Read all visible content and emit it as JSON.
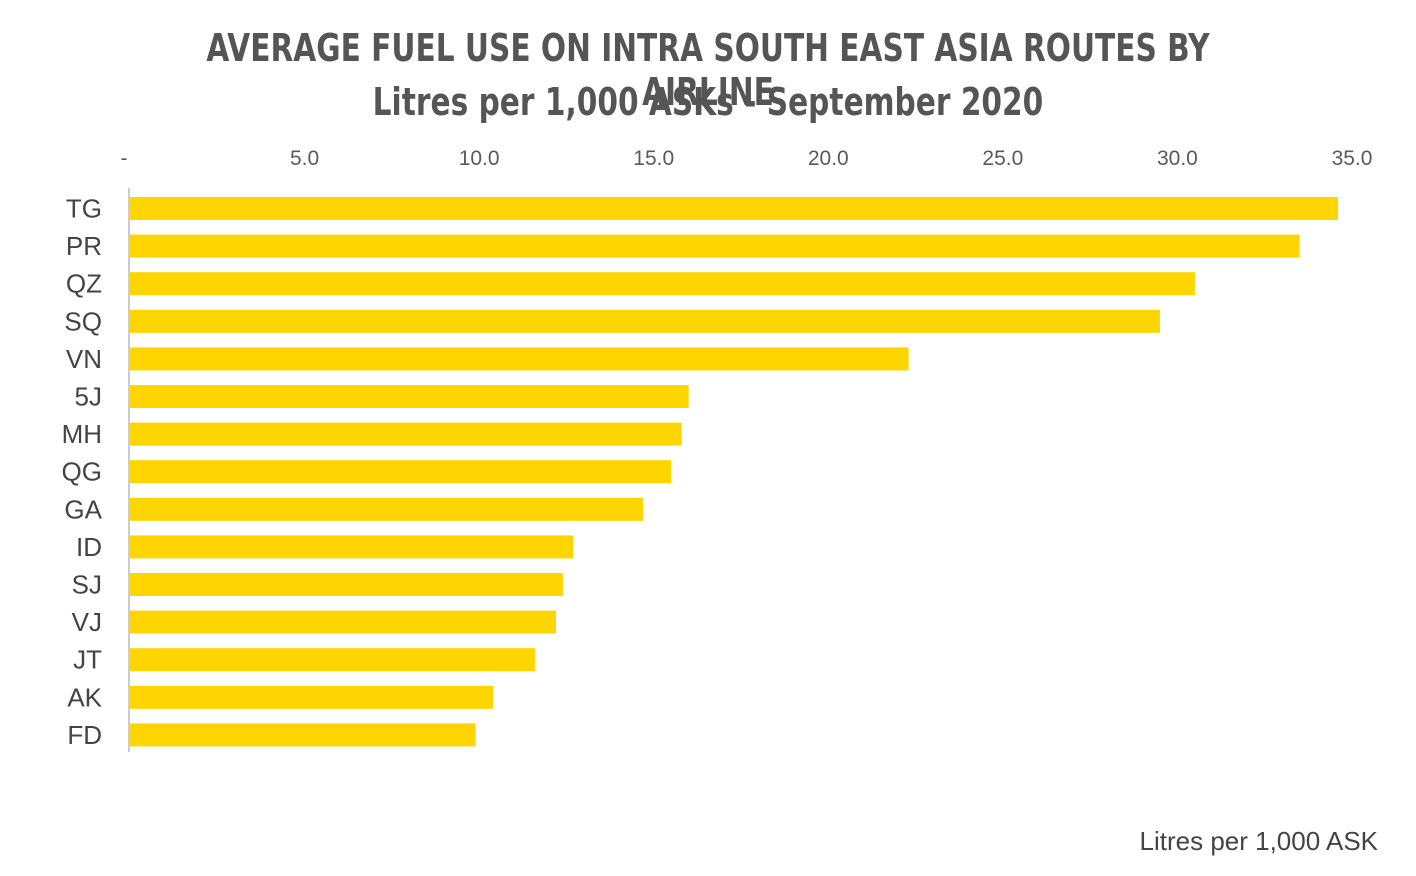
{
  "chart_data": {
    "type": "bar",
    "orientation": "horizontal",
    "title": "AVERAGE FUEL USE ON INTRA SOUTH EAST ASIA ROUTES BY AIRLINE",
    "subtitle": "Litres per 1,000 ASKs - September 2020",
    "xlabel": "Litres per 1,000 ASK",
    "ylabel": "",
    "xlim": [
      0,
      35
    ],
    "x_ticks": [
      0,
      5,
      10,
      15,
      20,
      25,
      30,
      35
    ],
    "x_tick_labels": [
      "-",
      "5.0",
      "10.0",
      "15.0",
      "20.0",
      "25.0",
      "30.0",
      "35.0"
    ],
    "x_axis_position": "top",
    "grid": false,
    "legend": "none",
    "bar_color": "#FFD500",
    "categories": [
      "TG",
      "PR",
      "QZ",
      "SQ",
      "VN",
      "5J",
      "MH",
      "QG",
      "GA",
      "ID",
      "SJ",
      "VJ",
      "JT",
      "AK",
      "FD"
    ],
    "values": [
      34.6,
      33.5,
      30.5,
      29.5,
      22.3,
      16.0,
      15.8,
      15.5,
      14.7,
      12.7,
      12.4,
      12.2,
      11.6,
      10.4,
      9.9
    ]
  }
}
